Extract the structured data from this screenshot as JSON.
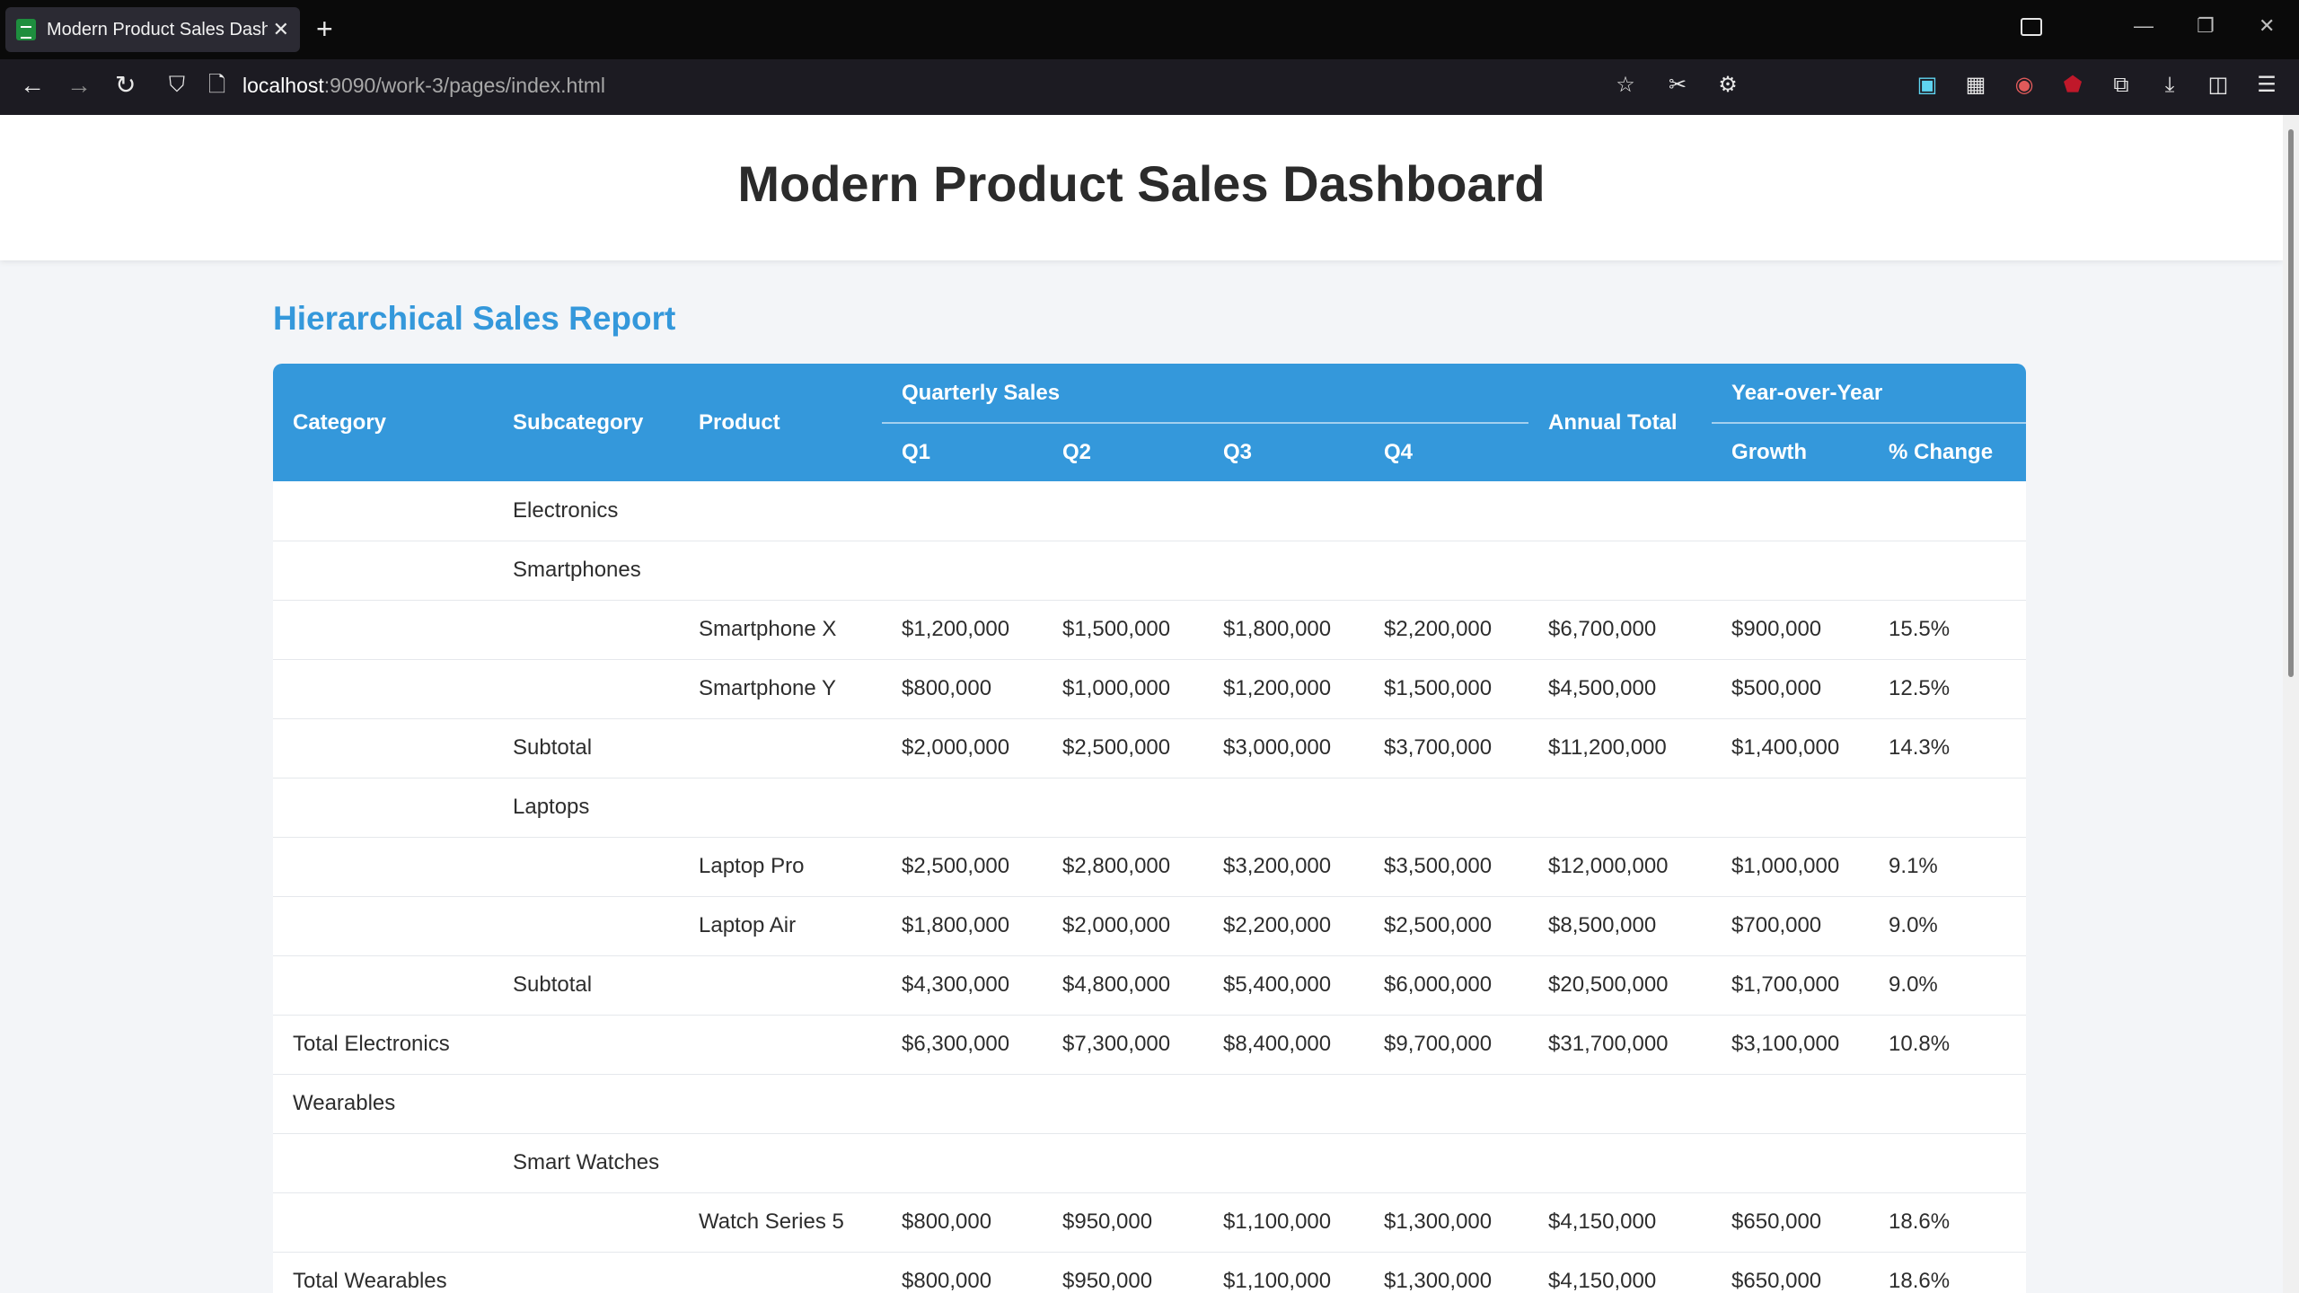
{
  "browser": {
    "tab_title": "Modern Product Sales Dashb",
    "url_host": "localhost",
    "url_rest": ":9090/work-3/pages/index.html"
  },
  "page": {
    "title": "Modern Product Sales Dashboard",
    "section_title": "Hierarchical Sales Report"
  },
  "table": {
    "headers": {
      "category": "Category",
      "subcategory": "Subcategory",
      "product": "Product",
      "quarterly": "Quarterly Sales",
      "q1": "Q1",
      "q2": "Q2",
      "q3": "Q3",
      "q4": "Q4",
      "annual": "Annual Total",
      "yoy": "Year-over-Year",
      "growth": "Growth",
      "pct": "% Change"
    },
    "rows": [
      [
        "",
        "Electronics",
        "",
        "",
        "",
        "",
        "",
        "",
        "",
        ""
      ],
      [
        "",
        "Smartphones",
        "",
        "",
        "",
        "",
        "",
        "",
        "",
        ""
      ],
      [
        "",
        "",
        "Smartphone X",
        "$1,200,000",
        "$1,500,000",
        "$1,800,000",
        "$2,200,000",
        "$6,700,000",
        "$900,000",
        "15.5%"
      ],
      [
        "",
        "",
        "Smartphone Y",
        "$800,000",
        "$1,000,000",
        "$1,200,000",
        "$1,500,000",
        "$4,500,000",
        "$500,000",
        "12.5%"
      ],
      [
        "",
        "Subtotal",
        "",
        "$2,000,000",
        "$2,500,000",
        "$3,000,000",
        "$3,700,000",
        "$11,200,000",
        "$1,400,000",
        "14.3%"
      ],
      [
        "",
        "Laptops",
        "",
        "",
        "",
        "",
        "",
        "",
        "",
        ""
      ],
      [
        "",
        "",
        "Laptop Pro",
        "$2,500,000",
        "$2,800,000",
        "$3,200,000",
        "$3,500,000",
        "$12,000,000",
        "$1,000,000",
        "9.1%"
      ],
      [
        "",
        "",
        "Laptop Air",
        "$1,800,000",
        "$2,000,000",
        "$2,200,000",
        "$2,500,000",
        "$8,500,000",
        "$700,000",
        "9.0%"
      ],
      [
        "",
        "Subtotal",
        "",
        "$4,300,000",
        "$4,800,000",
        "$5,400,000",
        "$6,000,000",
        "$20,500,000",
        "$1,700,000",
        "9.0%"
      ],
      [
        "Total Electronics",
        "",
        "",
        "$6,300,000",
        "$7,300,000",
        "$8,400,000",
        "$9,700,000",
        "$31,700,000",
        "$3,100,000",
        "10.8%"
      ],
      [
        "Wearables",
        "",
        "",
        "",
        "",
        "",
        "",
        "",
        "",
        ""
      ],
      [
        "",
        "Smart Watches",
        "",
        "",
        "",
        "",
        "",
        "",
        "",
        ""
      ],
      [
        "",
        "",
        "Watch Series 5",
        "$800,000",
        "$950,000",
        "$1,100,000",
        "$1,300,000",
        "$4,150,000",
        "$650,000",
        "18.6%"
      ],
      [
        "Total Wearables",
        "",
        "",
        "$800,000",
        "$950,000",
        "$1,100,000",
        "$1,300,000",
        "$4,150,000",
        "$650,000",
        "18.6%"
      ]
    ]
  }
}
